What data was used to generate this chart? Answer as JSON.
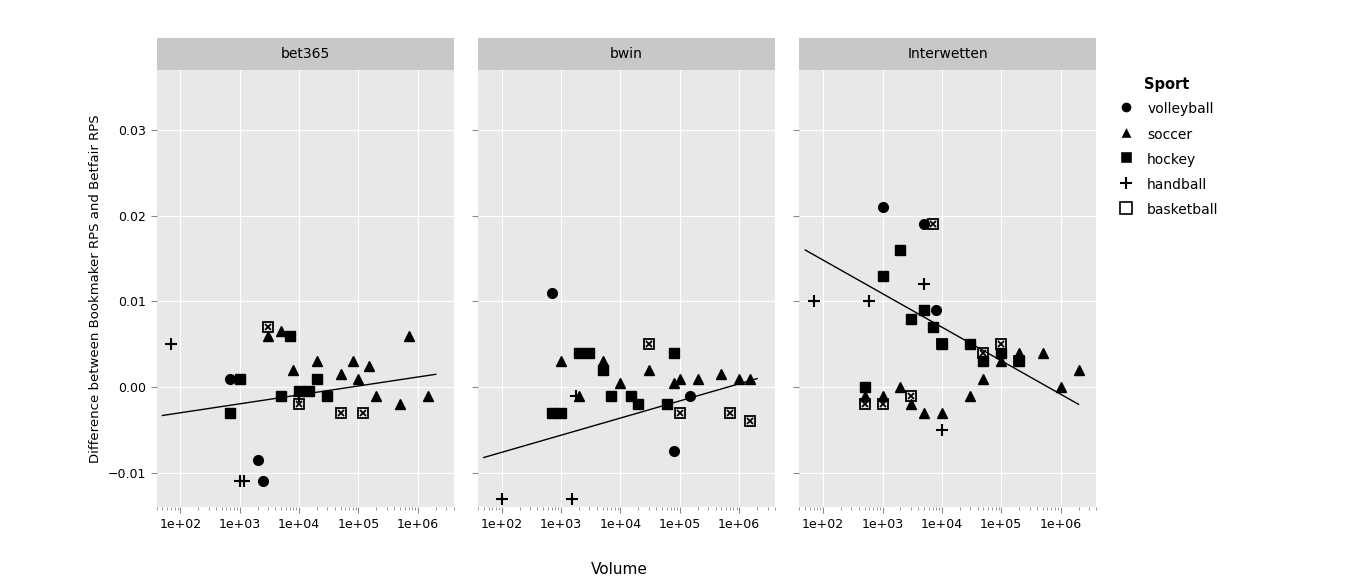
{
  "panels": [
    "bet365",
    "bwin",
    "Interwetten"
  ],
  "ylabel": "Difference between Bookmaker RPS and Betfair RPS",
  "xlabel": "Volume",
  "ylim": [
    -0.014,
    0.037
  ],
  "yticks": [
    -0.01,
    0.0,
    0.01,
    0.02,
    0.03
  ],
  "bg_color": "#E8E8E8",
  "strip_color": "#C8C8C8",
  "grid_color": "#FFFFFF",
  "sports": [
    "volleyball",
    "soccer",
    "hockey",
    "handball",
    "basketball"
  ],
  "bet365": {
    "volleyball": {
      "x": [
        700,
        2000,
        2500
      ],
      "y": [
        0.001,
        -0.0085,
        -0.011
      ]
    },
    "soccer": {
      "x": [
        3000,
        5000,
        8000,
        20000,
        50000,
        80000,
        100000,
        150000,
        200000,
        500000,
        700000,
        1500000
      ],
      "y": [
        0.006,
        0.0065,
        0.002,
        0.003,
        0.0015,
        0.003,
        0.001,
        0.0025,
        -0.001,
        -0.002,
        0.006,
        -0.001
      ]
    },
    "hockey": {
      "x": [
        700,
        1000,
        5000,
        7000,
        10000,
        15000,
        20000,
        30000
      ],
      "y": [
        -0.003,
        0.001,
        -0.001,
        0.006,
        -0.0005,
        -0.0005,
        0.001,
        -0.001
      ]
    },
    "handball": {
      "x": [
        70,
        1000,
        1200,
        10000
      ],
      "y": [
        0.005,
        -0.011,
        -0.011,
        -0.001
      ]
    },
    "basketball": {
      "x": [
        3000,
        10000,
        50000,
        120000
      ],
      "y": [
        0.007,
        -0.002,
        -0.003,
        -0.003
      ]
    }
  },
  "bwin": {
    "volleyball": {
      "x": [
        700,
        80000,
        150000
      ],
      "y": [
        0.011,
        -0.0075,
        -0.001
      ]
    },
    "soccer": {
      "x": [
        1000,
        2000,
        5000,
        10000,
        30000,
        80000,
        100000,
        200000,
        500000,
        1000000,
        1500000
      ],
      "y": [
        0.003,
        -0.001,
        0.003,
        0.0005,
        0.002,
        0.0005,
        0.001,
        0.001,
        0.0015,
        0.001,
        0.001
      ]
    },
    "hockey": {
      "x": [
        700,
        1000,
        2000,
        3000,
        5000,
        7000,
        15000,
        20000,
        60000,
        80000
      ],
      "y": [
        -0.003,
        -0.003,
        0.004,
        0.004,
        0.002,
        -0.001,
        -0.001,
        -0.002,
        -0.002,
        0.004
      ]
    },
    "handball": {
      "x": [
        100,
        1500,
        1800
      ],
      "y": [
        -0.013,
        -0.013,
        -0.001
      ]
    },
    "basketball": {
      "x": [
        30000,
        100000,
        700000,
        1500000
      ],
      "y": [
        0.005,
        -0.003,
        -0.003,
        -0.004
      ]
    }
  },
  "Interwetten": {
    "volleyball": {
      "x": [
        1000,
        5000,
        8000
      ],
      "y": [
        0.021,
        0.019,
        0.009
      ]
    },
    "soccer": {
      "x": [
        500,
        1000,
        2000,
        3000,
        5000,
        10000,
        30000,
        50000,
        100000,
        200000,
        500000,
        1000000,
        2000000
      ],
      "y": [
        -0.001,
        -0.001,
        0.0,
        -0.002,
        -0.003,
        -0.003,
        -0.001,
        0.001,
        0.003,
        0.004,
        0.004,
        0.0,
        0.002
      ]
    },
    "hockey": {
      "x": [
        500,
        1000,
        2000,
        3000,
        5000,
        7000,
        10000,
        30000,
        50000,
        100000,
        200000
      ],
      "y": [
        0.0,
        0.013,
        0.016,
        0.008,
        0.009,
        0.007,
        0.005,
        0.005,
        0.003,
        0.004,
        0.003
      ]
    },
    "handball": {
      "x": [
        70,
        600,
        5000,
        10000
      ],
      "y": [
        0.01,
        0.01,
        0.012,
        -0.005
      ]
    },
    "basketball": {
      "x": [
        500,
        1000,
        3000,
        7000,
        10000,
        50000,
        100000,
        200000
      ],
      "y": [
        -0.002,
        -0.002,
        -0.001,
        0.019,
        0.005,
        0.004,
        0.005,
        0.003
      ]
    }
  },
  "fit_bet365": {
    "x": [
      50,
      2000000
    ],
    "y": [
      -0.0033,
      0.0015
    ]
  },
  "fit_bwin": {
    "x": [
      50,
      2000000
    ],
    "y": [
      -0.0082,
      0.001
    ]
  },
  "fit_Interwetten": {
    "x": [
      50,
      2000000
    ],
    "y": [
      0.016,
      -0.002
    ]
  }
}
